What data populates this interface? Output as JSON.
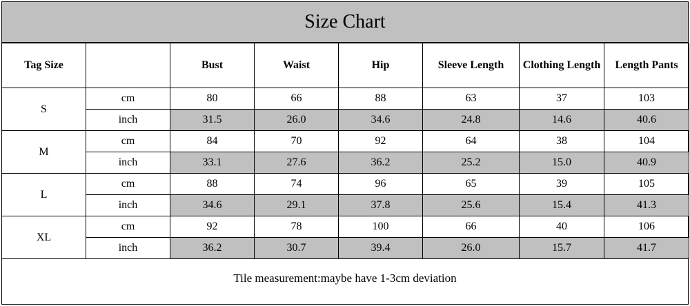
{
  "title": "Size Chart",
  "headers": [
    "Tag Size",
    "",
    "Bust",
    "Waist",
    "Hip",
    "Sleeve Length",
    "Clothing Length",
    "Length Pants"
  ],
  "rows": [
    {
      "size": "S",
      "cm": [
        "80",
        "66",
        "88",
        "63",
        "37",
        "103"
      ],
      "inch": [
        "31.5",
        "26.0",
        "34.6",
        "24.8",
        "14.6",
        "40.6"
      ]
    },
    {
      "size": "M",
      "cm": [
        "84",
        "70",
        "92",
        "64",
        "38",
        "104"
      ],
      "inch": [
        "33.1",
        "27.6",
        "36.2",
        "25.2",
        "15.0",
        "40.9"
      ]
    },
    {
      "size": "L",
      "cm": [
        "88",
        "74",
        "96",
        "65",
        "39",
        "105"
      ],
      "inch": [
        "34.6",
        "29.1",
        "37.8",
        "25.6",
        "15.4",
        "41.3"
      ]
    },
    {
      "size": "XL",
      "cm": [
        "92",
        "78",
        "100",
        "66",
        "40",
        "106"
      ],
      "inch": [
        "36.2",
        "30.7",
        "39.4",
        "26.0",
        "15.7",
        "41.7"
      ]
    }
  ],
  "unit_labels": {
    "cm": "cm",
    "inch": "inch"
  },
  "note": "Tile measurement:maybe have 1-3cm deviation",
  "colors": {
    "shade": "#c0c0c0",
    "border": "#000000"
  }
}
